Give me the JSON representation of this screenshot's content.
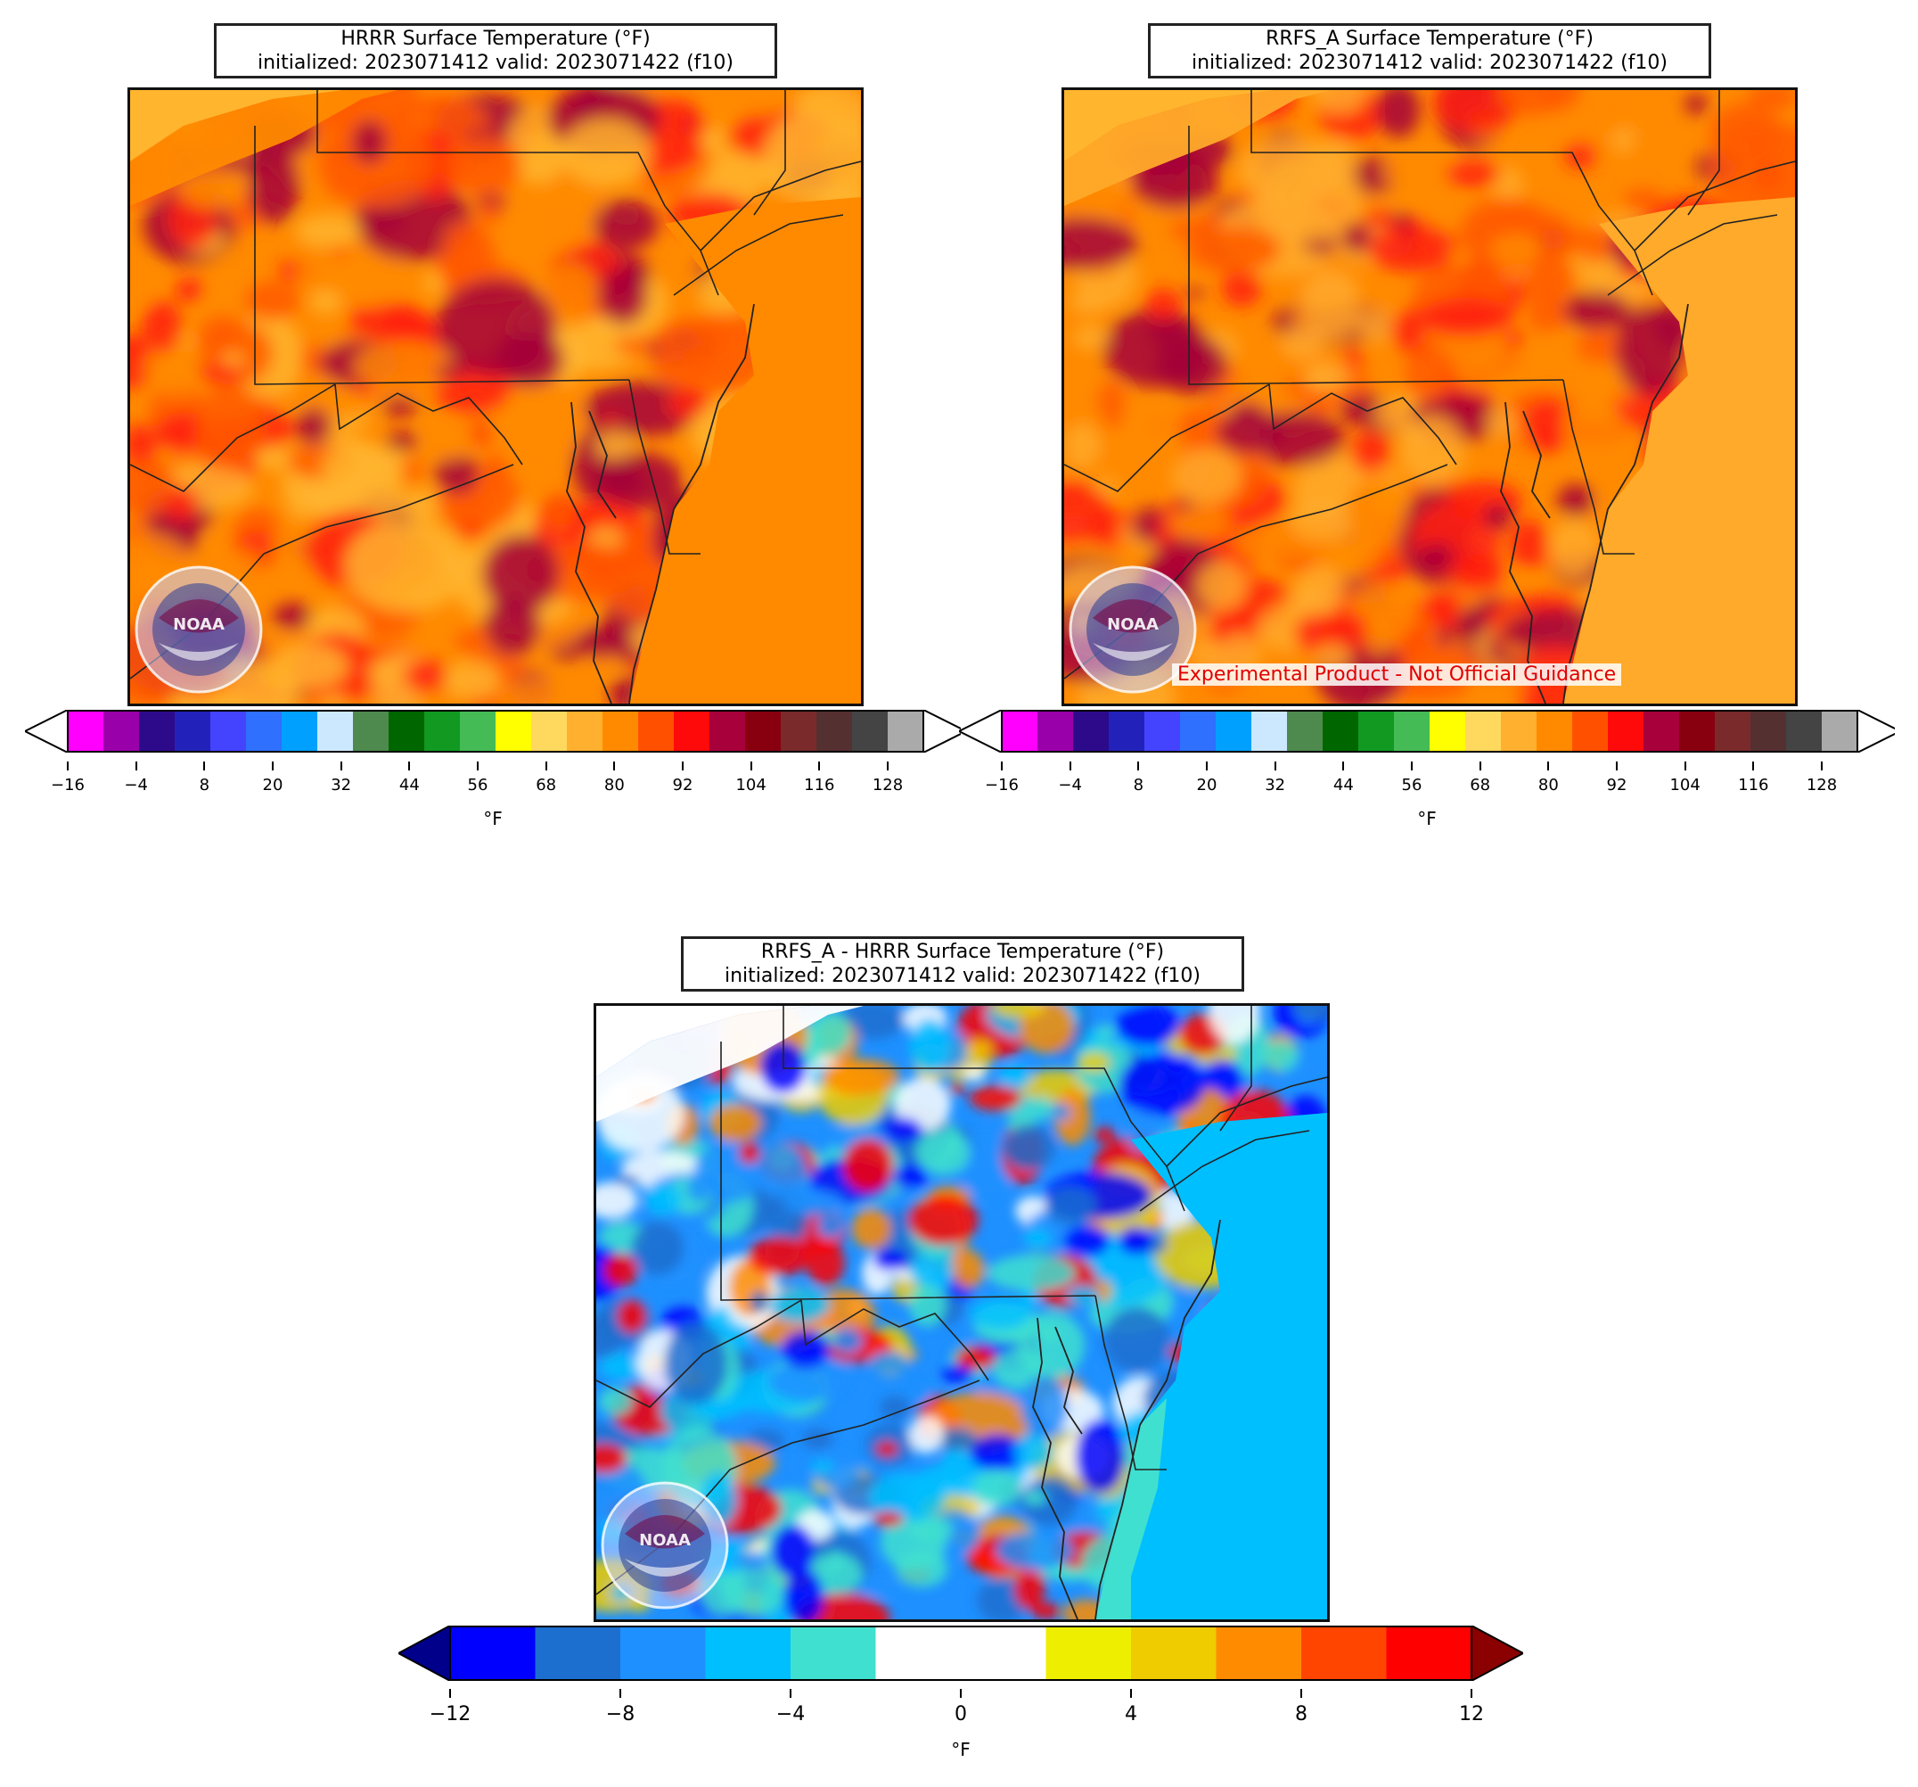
{
  "panels": {
    "hrrr": {
      "title_line1": "HRRR Surface Temperature (°F)",
      "title_line2": "initialized: 2023071412 valid: 2023071422 (f10)",
      "palette": [
        "#ff8a00",
        "#ff5a00",
        "#ff1e10",
        "#a3003a",
        "#ffb52e"
      ]
    },
    "rrfs": {
      "title_line1": "RRFS_A Surface Temperature (°F)",
      "title_line2": "initialized: 2023071412 valid: 2023071422 (f10)",
      "warning": "Experimental Product - Not Official Guidance",
      "palette": [
        "#ff8a00",
        "#ffaa2a",
        "#ff5a00",
        "#ff1e10",
        "#a3003a"
      ]
    },
    "diff": {
      "title_line1": "RRFS_A - HRRR Surface Temperature (°F)",
      "title_line2": "initialized: 2023071412 valid: 2023071422 (f10)",
      "palette": [
        "#1e90ff",
        "#00bfff",
        "#ffffff",
        "#1c6fcf",
        "#40e0d0",
        "#0000ff",
        "#eecc00",
        "#ff8c00",
        "#ff0000"
      ]
    }
  },
  "temperature_colorbar": {
    "unit": "°F",
    "ticks": [
      "−16",
      "−4",
      "8",
      "20",
      "32",
      "44",
      "56",
      "68",
      "80",
      "92",
      "104",
      "116",
      "128"
    ],
    "colors": [
      "#ff00ff",
      "#9900aa",
      "#2d0a8a",
      "#2222bb",
      "#4444ff",
      "#2f70ff",
      "#00a0ff",
      "#cce8ff",
      "#4e8a4e",
      "#006600",
      "#119922",
      "#44bb55",
      "#ffff00",
      "#ffd85e",
      "#ffb02e",
      "#ff8a00",
      "#ff5000",
      "#ff0a0a",
      "#a8003a",
      "#880010",
      "#7a2a2a",
      "#553030",
      "#444444",
      "#aaaaaa"
    ],
    "under_color": "#ffffff",
    "over_color": "#ffffff"
  },
  "difference_colorbar": {
    "unit": "°F",
    "ticks": [
      "−12",
      "−8",
      "−4",
      "0",
      "4",
      "8",
      "12"
    ],
    "colors": [
      "#0000ff",
      "#1c6fcf",
      "#1e90ff",
      "#00bfff",
      "#40e0d0",
      "#ffffff",
      "#ffffff",
      "#eeee00",
      "#eecc00",
      "#ff8c00",
      "#ff4500",
      "#ff0000"
    ],
    "under_color": "#00008b",
    "over_color": "#8b0000"
  },
  "logo_text": "NOAA"
}
